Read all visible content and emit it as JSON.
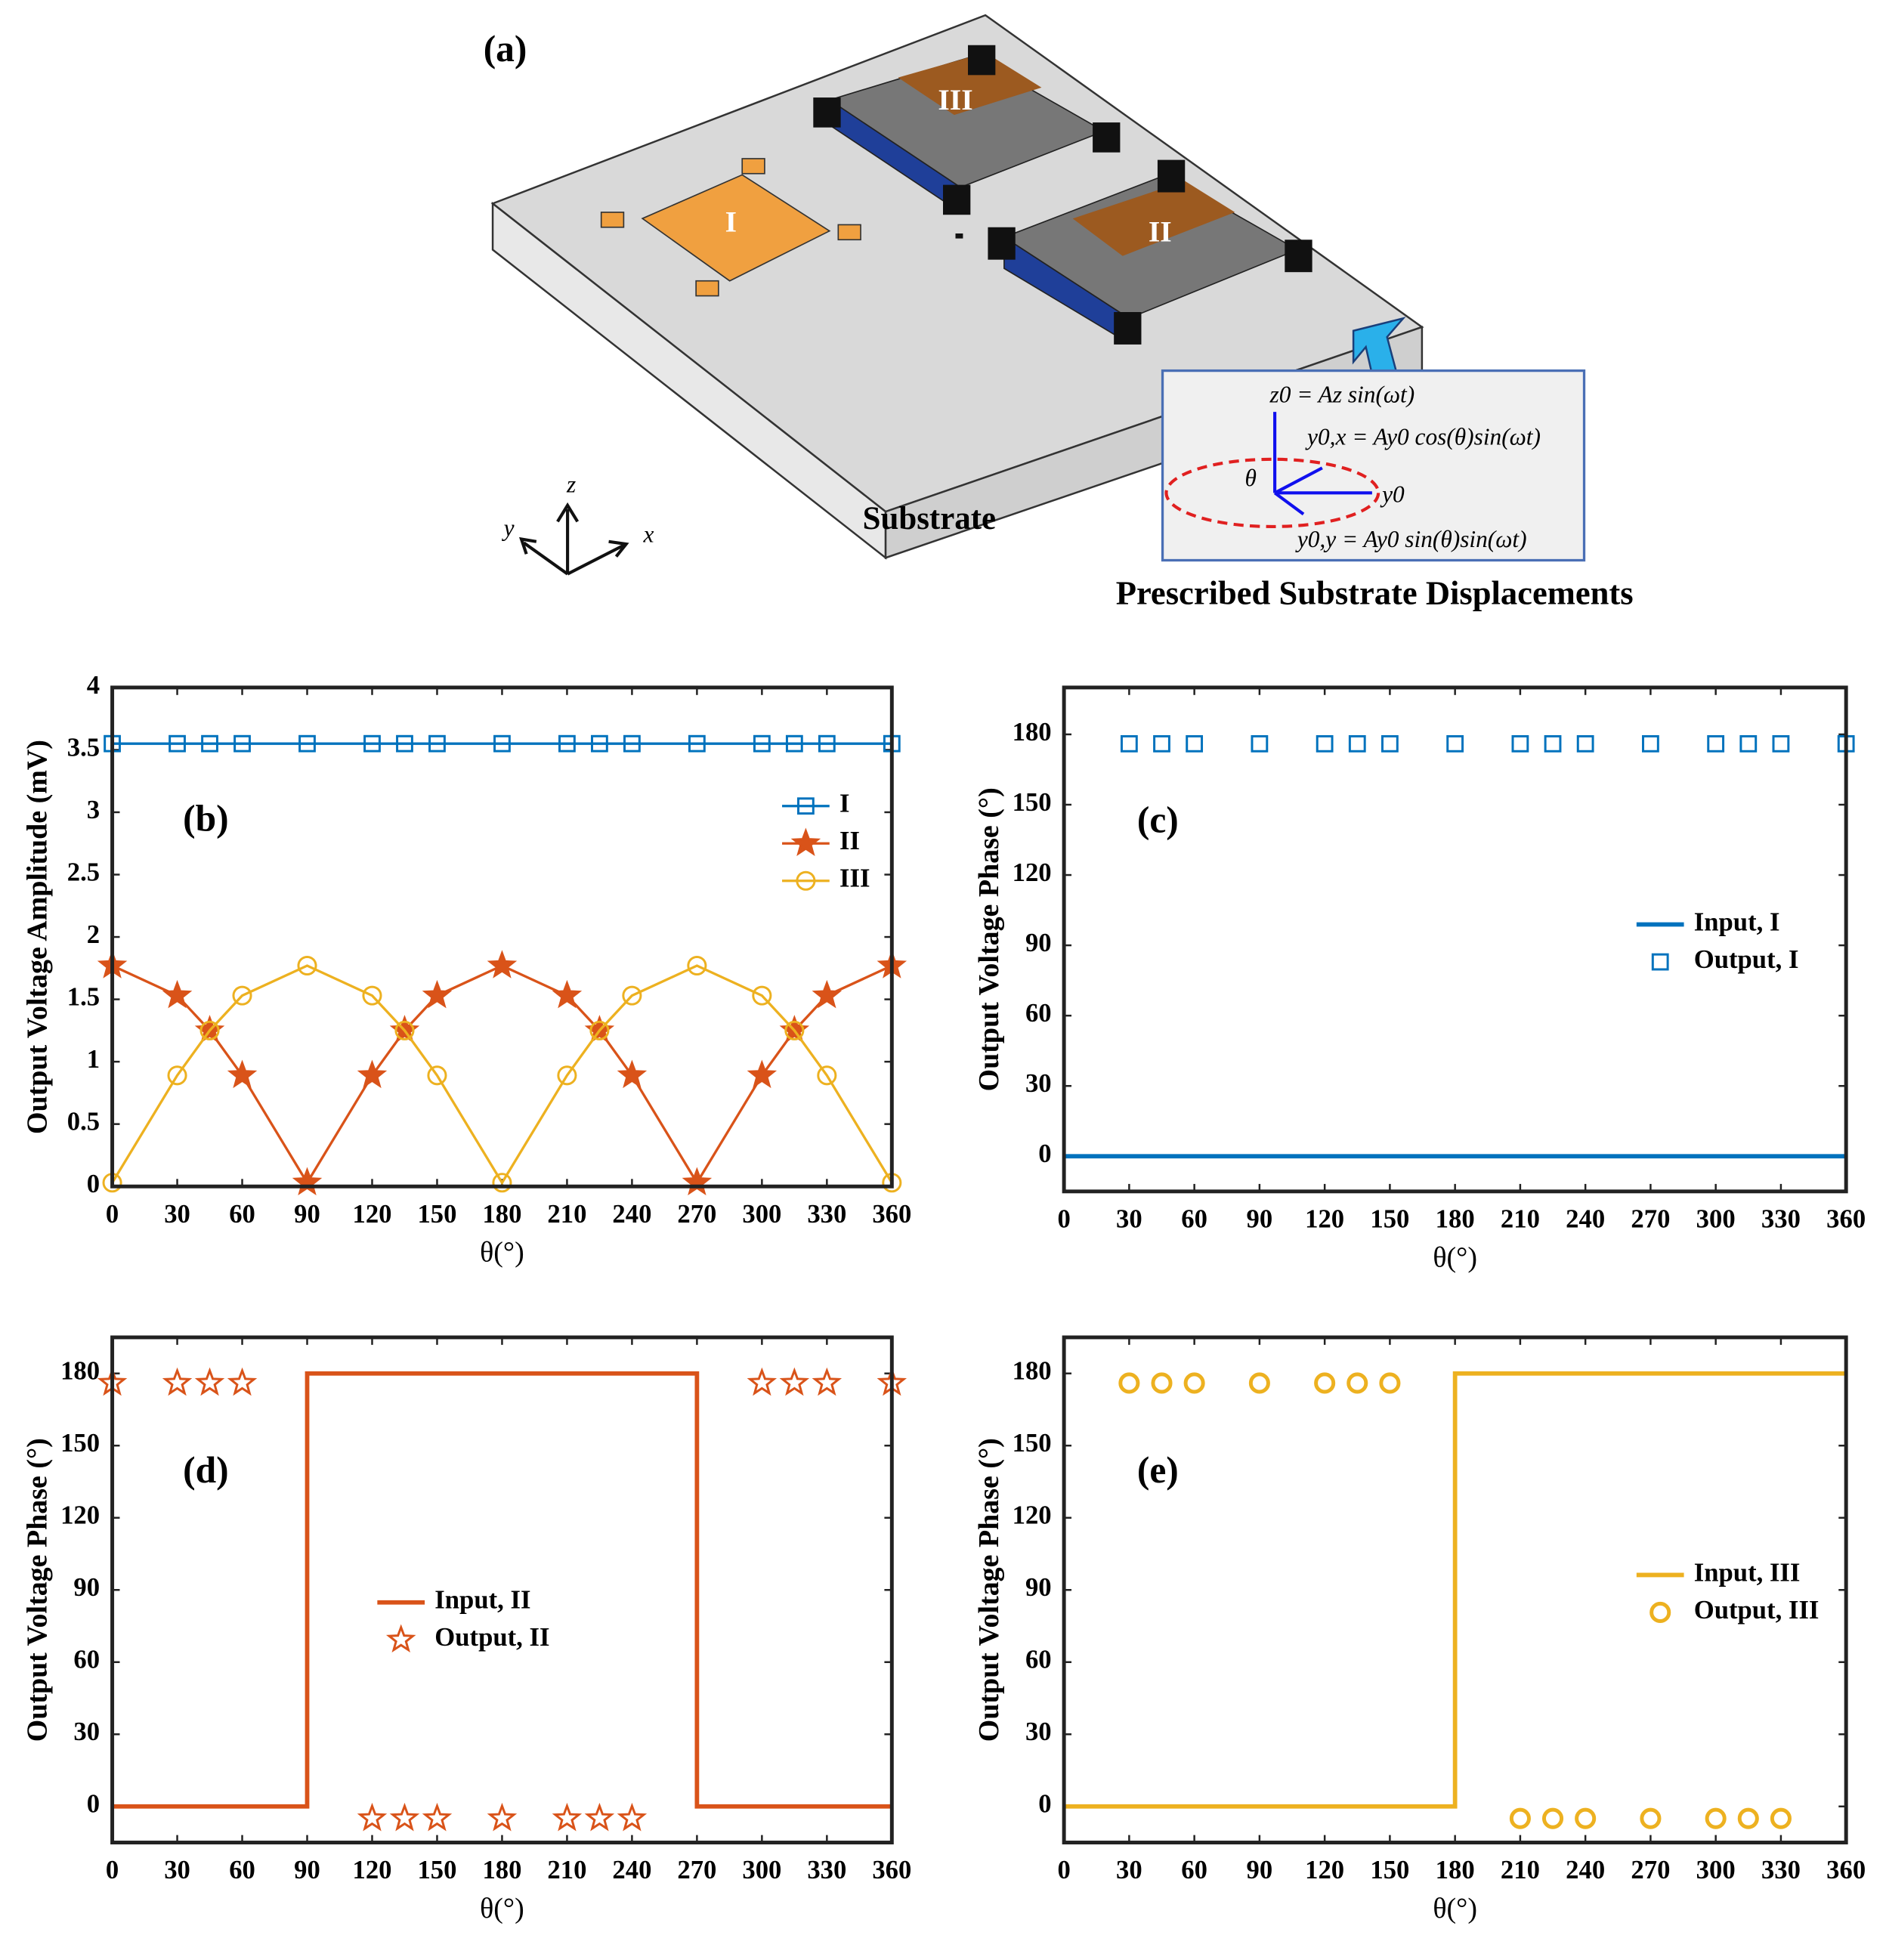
{
  "diagram": {
    "label": "(a)",
    "device_1": "I",
    "device_2": "II",
    "device_3": "III",
    "substrate": "Substrate",
    "axis_z": "z",
    "axis_y": "y",
    "axis_x": "x",
    "eq_z": "z0 = Az sin(ωt)",
    "eq_yx": "y0,x = Ay0 cos(θ)sin(ωt)",
    "eq_y0": "y0",
    "eq_theta": "θ",
    "eq_yy": "y0,y = Ay0 sin(θ)sin(ωt)",
    "caption": "Prescribed Substrate Displacements"
  },
  "chart_data": [
    {
      "type": "line",
      "label": "(b)",
      "xlabel": "θ(°)",
      "ylabel": "Output Voltage Amplitude (mV)",
      "x": [
        0,
        30,
        45,
        60,
        90,
        120,
        135,
        150,
        180,
        210,
        225,
        240,
        270,
        300,
        315,
        330,
        360
      ],
      "series": [
        {
          "name": "I",
          "color": "#0072bd",
          "marker": "square",
          "marker_filled": false,
          "line": true,
          "values": [
            3.55,
            3.55,
            3.55,
            3.55,
            3.55,
            3.55,
            3.55,
            3.55,
            3.55,
            3.55,
            3.55,
            3.55,
            3.55,
            3.55,
            3.55,
            3.55,
            3.55
          ]
        },
        {
          "name": "II",
          "color": "#d95319",
          "marker": "star",
          "marker_filled": true,
          "line": true,
          "values": [
            1.77,
            1.53,
            1.25,
            0.89,
            0.03,
            0.89,
            1.25,
            1.53,
            1.77,
            1.53,
            1.25,
            0.89,
            0.03,
            0.89,
            1.25,
            1.53,
            1.77
          ]
        },
        {
          "name": "III",
          "color": "#edb120",
          "marker": "circle",
          "marker_filled": false,
          "line": true,
          "values": [
            0.03,
            0.89,
            1.25,
            1.53,
            1.77,
            1.53,
            1.25,
            0.89,
            0.03,
            0.89,
            1.25,
            1.53,
            1.77,
            1.53,
            1.25,
            0.89,
            0.03
          ]
        }
      ],
      "xlim": [
        0,
        360
      ],
      "xticks": [
        0,
        30,
        60,
        90,
        120,
        150,
        180,
        210,
        240,
        270,
        300,
        330,
        360
      ],
      "ylim": [
        0,
        4
      ],
      "yticks": [
        0,
        0.5,
        1,
        1.5,
        2,
        2.5,
        3,
        3.5,
        4
      ],
      "legend": "upper right"
    },
    {
      "type": "line",
      "label": "(c)",
      "xlabel": "θ(°)",
      "ylabel": "Output Voltage Phase (°)",
      "series": [
        {
          "name": "Input, I",
          "color": "#0072bd",
          "marker": null,
          "line": true,
          "x": [
            0,
            360
          ],
          "values": [
            0,
            0
          ]
        },
        {
          "name": "Output, I",
          "color": "#0072bd",
          "marker": "square",
          "marker_filled": false,
          "line": false,
          "x": [
            30,
            45,
            60,
            90,
            120,
            135,
            150,
            180,
            210,
            225,
            240,
            270,
            300,
            315,
            330,
            360
          ],
          "values": [
            176,
            176,
            176,
            176,
            176,
            176,
            176,
            176,
            176,
            176,
            176,
            176,
            176,
            176,
            176,
            176
          ]
        }
      ],
      "xlim": [
        0,
        360
      ],
      "xticks": [
        0,
        30,
        60,
        90,
        120,
        150,
        180,
        210,
        240,
        270,
        300,
        330,
        360
      ],
      "ylim": [
        -15,
        200
      ],
      "yticks": [
        0,
        30,
        60,
        90,
        120,
        150,
        180
      ],
      "legend": "center right"
    },
    {
      "type": "line",
      "label": "(d)",
      "xlabel": "θ(°)",
      "ylabel": "Output Voltage Phase (°)",
      "series": [
        {
          "name": "Input, II",
          "color": "#d95319",
          "marker": null,
          "line": true,
          "x": [
            0,
            90,
            90,
            270,
            270,
            360
          ],
          "values": [
            0,
            0,
            180,
            180,
            0,
            0
          ]
        },
        {
          "name": "Output, II",
          "color": "#d95319",
          "marker": "star",
          "marker_filled": false,
          "line": false,
          "x": [
            0,
            30,
            45,
            60,
            120,
            135,
            150,
            180,
            210,
            225,
            240,
            300,
            315,
            330,
            360
          ],
          "values": [
            176,
            176,
            176,
            176,
            -5,
            -5,
            -5,
            -5,
            -5,
            -5,
            -5,
            176,
            176,
            176,
            176
          ]
        }
      ],
      "xlim": [
        0,
        360
      ],
      "xticks": [
        0,
        30,
        60,
        90,
        120,
        150,
        180,
        210,
        240,
        270,
        300,
        330,
        360
      ],
      "ylim": [
        -15,
        195
      ],
      "yticks": [
        0,
        30,
        60,
        90,
        120,
        150,
        180
      ],
      "legend": "center"
    },
    {
      "type": "line",
      "label": "(e)",
      "xlabel": "θ(°)",
      "ylabel": "Output Voltage Phase (°)",
      "series": [
        {
          "name": "Input, III",
          "color": "#edb120",
          "marker": null,
          "line": true,
          "x": [
            0,
            180,
            180,
            360
          ],
          "values": [
            0,
            0,
            180,
            180
          ]
        },
        {
          "name": "Output, III",
          "color": "#edb120",
          "marker": "circle",
          "marker_filled": false,
          "line": false,
          "x": [
            30,
            45,
            60,
            90,
            120,
            135,
            150,
            210,
            225,
            240,
            270,
            300,
            315,
            330
          ],
          "values": [
            176,
            176,
            176,
            176,
            176,
            176,
            176,
            -5,
            -5,
            -5,
            -5,
            -5,
            -5,
            -5
          ]
        }
      ],
      "xlim": [
        0,
        360
      ],
      "xticks": [
        0,
        30,
        60,
        90,
        120,
        150,
        180,
        210,
        240,
        270,
        300,
        330,
        360
      ],
      "ylim": [
        -15,
        195
      ],
      "yticks": [
        0,
        30,
        60,
        90,
        120,
        150,
        180
      ],
      "legend": "center right"
    }
  ]
}
